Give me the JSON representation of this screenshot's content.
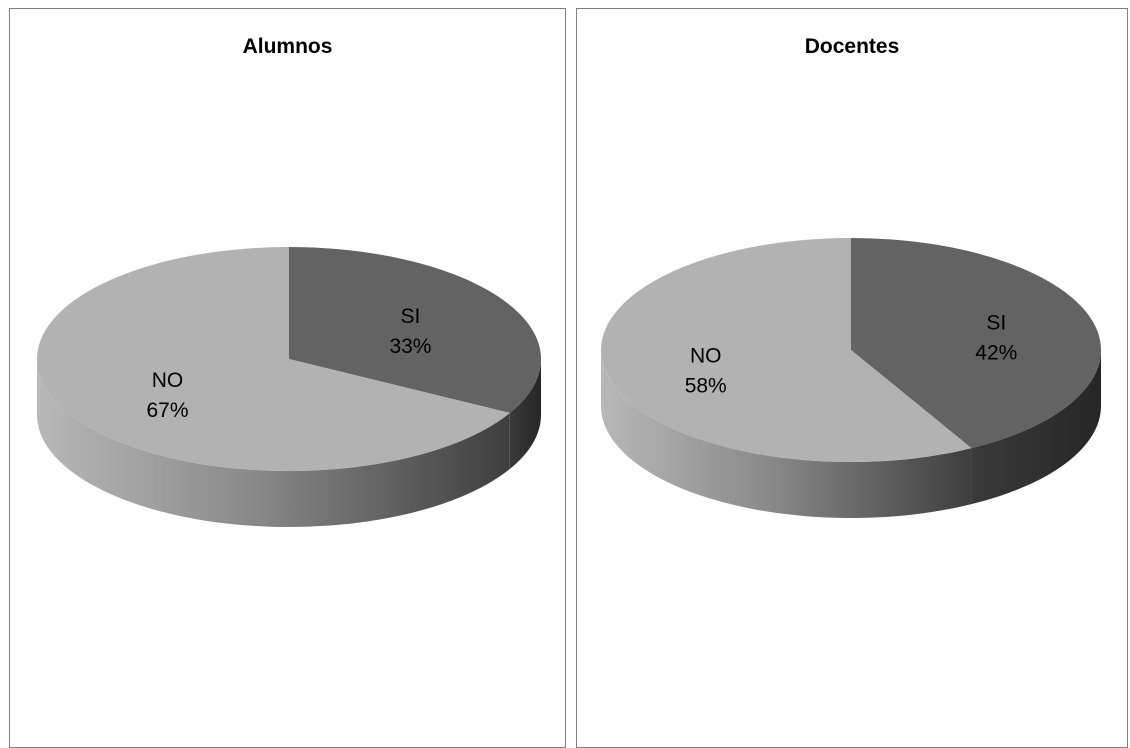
{
  "colors": {
    "si_top": "#636363",
    "no_top": "#b2b2b2",
    "border": "#7f7f7f"
  },
  "chart_data": [
    {
      "type": "pie",
      "title": "Alumnos",
      "categories": [
        "SI",
        "NO"
      ],
      "values": [
        33,
        67
      ],
      "labels": [
        "33%",
        "67%"
      ],
      "style": "3d"
    },
    {
      "type": "pie",
      "title": "Docentes",
      "categories": [
        "SI",
        "NO"
      ],
      "values": [
        42,
        58
      ],
      "labels": [
        "42%",
        "58%"
      ],
      "style": "3d"
    }
  ]
}
